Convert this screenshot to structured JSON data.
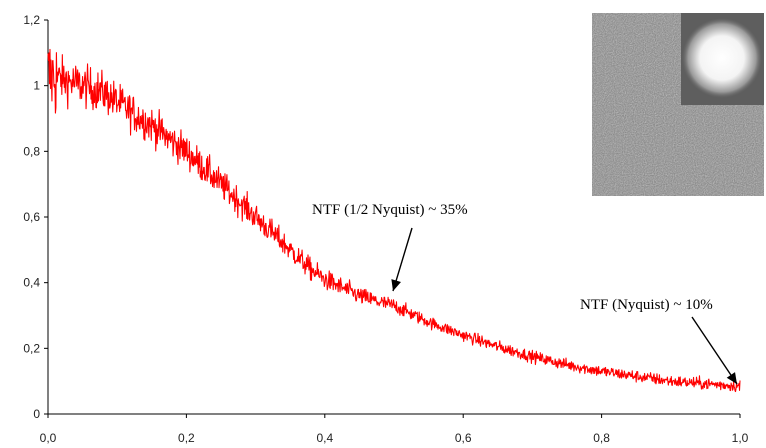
{
  "chart_data": {
    "type": "line",
    "title": "",
    "xlabel": "",
    "ylabel": "",
    "xlim": [
      0,
      1
    ],
    "ylim": [
      0,
      1.2
    ],
    "x_ticks": [
      0,
      0.2,
      0.4,
      0.6,
      0.8,
      1.0
    ],
    "y_ticks": [
      0,
      0.2,
      0.4,
      0.6,
      0.8,
      1.0,
      1.2
    ],
    "x_tick_labels": [
      "0,0",
      "0,2",
      "0,4",
      "0,6",
      "0,8",
      "1,0"
    ],
    "y_tick_labels": [
      "0",
      "0,2",
      "0,4",
      "0,6",
      "0,8",
      "1",
      "1,2"
    ],
    "grid": false,
    "legend": false,
    "series": [
      {
        "color": "#ff0000",
        "noisy": true,
        "x": [
          0.0,
          0.02,
          0.05,
          0.08,
          0.1,
          0.12,
          0.15,
          0.18,
          0.2,
          0.22,
          0.25,
          0.28,
          0.3,
          0.32,
          0.35,
          0.38,
          0.4,
          0.42,
          0.45,
          0.48,
          0.5,
          0.55,
          0.6,
          0.65,
          0.7,
          0.75,
          0.8,
          0.85,
          0.9,
          0.95,
          1.0
        ],
        "y": [
          1.03,
          1.02,
          1.0,
          0.98,
          0.95,
          0.92,
          0.88,
          0.83,
          0.8,
          0.76,
          0.7,
          0.64,
          0.6,
          0.56,
          0.5,
          0.44,
          0.41,
          0.39,
          0.36,
          0.34,
          0.33,
          0.28,
          0.24,
          0.205,
          0.175,
          0.15,
          0.13,
          0.115,
          0.1,
          0.092,
          0.085
        ]
      }
    ],
    "annotations": [
      {
        "text": "NTF (1/2 Nyquist) ~ 35%",
        "x": 0.5,
        "y": 0.35
      },
      {
        "text": "NTF (Nyquist) ~ 10%",
        "x": 1.0,
        "y": 0.085
      }
    ],
    "inset": {
      "description": "noise image with bright disk",
      "position": "top-right"
    }
  }
}
